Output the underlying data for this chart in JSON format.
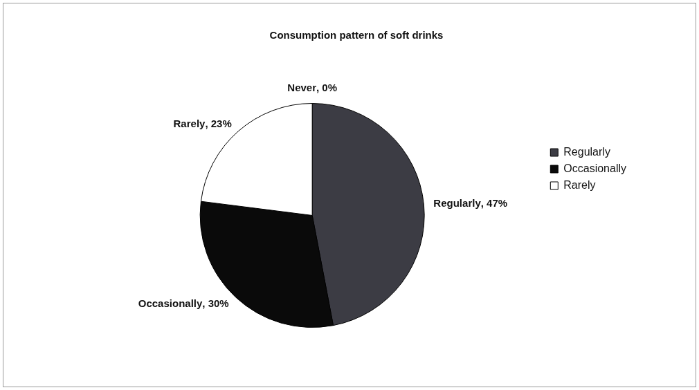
{
  "chart_data": {
    "type": "pie",
    "title": "Consumption pattern of soft drinks",
    "categories": [
      "Regularly",
      "Occasionally",
      "Rarely",
      "Never"
    ],
    "values": [
      47,
      30,
      23,
      0
    ],
    "colors": [
      "#3c3c44",
      "#0a0a0a",
      "#ffffff",
      "#bdbdbd"
    ],
    "value_labels": [
      ", 47%",
      ", 30%",
      ", 23%",
      ", 0%"
    ],
    "legend": "right"
  }
}
